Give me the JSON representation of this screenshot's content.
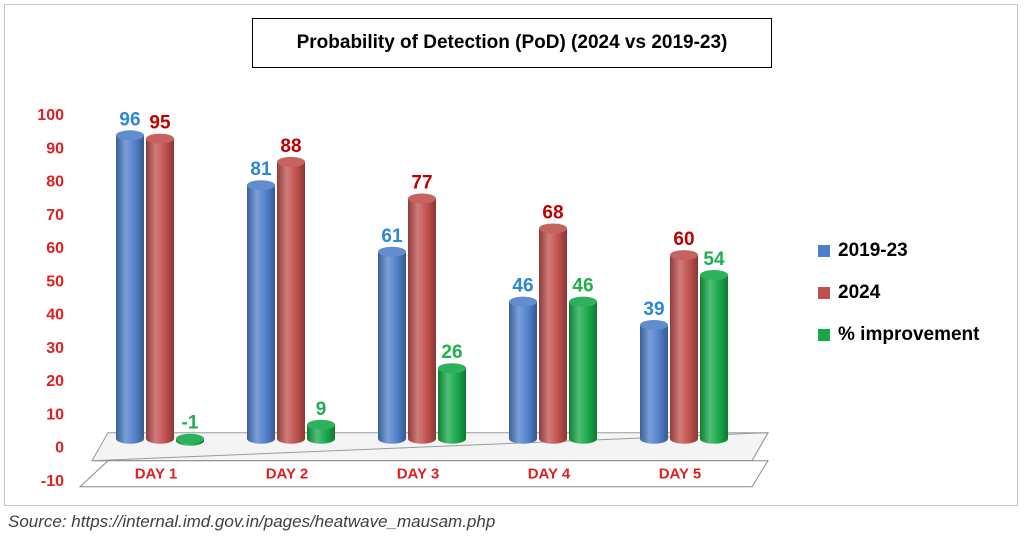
{
  "chart_data": {
    "type": "bar",
    "title": "Probability of Detection (PoD) (2024 vs 2019-23)",
    "categories": [
      "DAY 1",
      "DAY 2",
      "DAY 3",
      "DAY 4",
      "DAY 5"
    ],
    "series": [
      {
        "name": "2019-23",
        "values": [
          96,
          81,
          61,
          46,
          39
        ],
        "color": "#4f7fc9",
        "label_color": "#2e86d6"
      },
      {
        "name": "2024",
        "values": [
          95,
          88,
          77,
          68,
          60
        ],
        "color": "#c0504d",
        "label_color": "#c00000"
      },
      {
        "name": "% improvement",
        "values": [
          -1,
          9,
          26,
          46,
          54
        ],
        "color": "#17a84a",
        "label_color": "#1eaf4e"
      }
    ],
    "yticks": [
      "100",
      "90",
      "80",
      "70",
      "60",
      "50",
      "40",
      "30",
      "20",
      "10",
      "0",
      "-10"
    ],
    "ylim": [
      -10,
      100
    ],
    "tick_color": "#e02020",
    "category_color": "#e02020",
    "legend_position": "right"
  },
  "source": "Source: https://internal.imd.gov.in/pages/heatwave_mausam.php"
}
